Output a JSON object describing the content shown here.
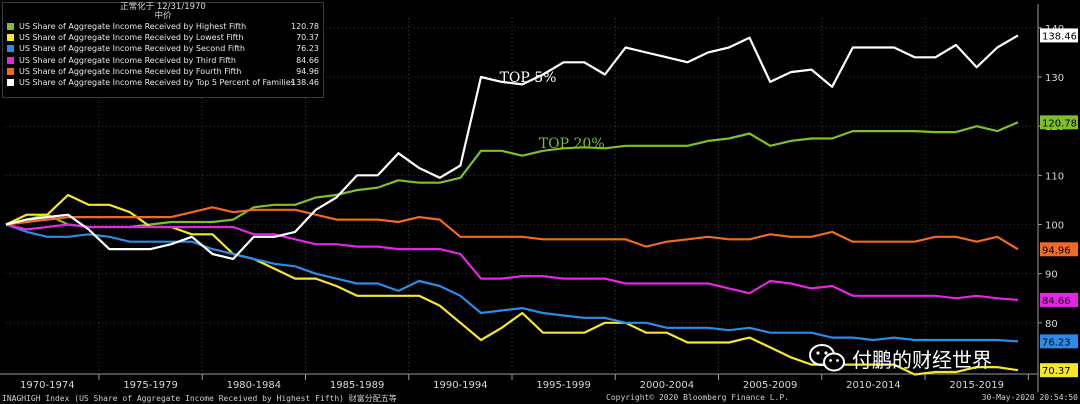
{
  "legend": {
    "title_line1": "正常化于 12/31/1970",
    "title_line2": "中价"
  },
  "chart_data": {
    "type": "line",
    "title": "正常化于 12/31/1970",
    "ylim": [
      70,
      142
    ],
    "yticks": [
      80,
      90,
      100,
      110,
      120,
      130,
      140
    ],
    "x_periods": [
      "1970-1974",
      "1975-1979",
      "1980-1984",
      "1985-1989",
      "1990-1994",
      "1995-1999",
      "2000-2004",
      "2005-2009",
      "2010-2014",
      "2015-2019"
    ],
    "x": [
      1970,
      1971,
      1972,
      1973,
      1974,
      1975,
      1976,
      1977,
      1978,
      1979,
      1980,
      1981,
      1982,
      1983,
      1984,
      1985,
      1986,
      1987,
      1988,
      1989,
      1990,
      1991,
      1992,
      1993,
      1994,
      1995,
      1996,
      1997,
      1998,
      1999,
      2000,
      2001,
      2002,
      2003,
      2004,
      2005,
      2006,
      2007,
      2008,
      2009,
      2010,
      2011,
      2012,
      2013,
      2014,
      2015,
      2016,
      2017,
      2018,
      2019
    ],
    "series": [
      {
        "name": "US Share of Aggregate Income Received by Highest Fifth",
        "color": "#7fbf2a",
        "last": "120.78",
        "values": [
          100,
          101,
          102,
          100,
          99.5,
          99.5,
          99.5,
          100,
          100.5,
          100.5,
          100.5,
          101,
          103.5,
          104,
          104,
          105.5,
          106,
          107,
          107.5,
          109,
          108.5,
          108.5,
          109.5,
          115,
          115,
          114,
          115,
          115.5,
          115.7,
          115.5,
          116,
          116,
          116,
          116,
          117,
          117.5,
          118.5,
          116,
          117,
          117.5,
          117.5,
          119,
          119,
          119,
          119,
          118.8,
          118.8,
          120,
          119,
          120.78
        ]
      },
      {
        "name": "US Share of Aggregate Income Received by Lowest Fifth",
        "color": "#f5e62e",
        "last": "70.37",
        "values": [
          100,
          102,
          102,
          106,
          104,
          104,
          102.5,
          99.5,
          99.5,
          98,
          98,
          94,
          93,
          91,
          89,
          89,
          87.5,
          85.5,
          85.5,
          85.5,
          85.5,
          83.5,
          80,
          76.5,
          79,
          82,
          78,
          78,
          78,
          80,
          80,
          78,
          78,
          76,
          76,
          76,
          77,
          75,
          73,
          71.5,
          71.5,
          71.5,
          71.5,
          71.5,
          69.5,
          70,
          70,
          71,
          71,
          70.37
        ]
      },
      {
        "name": "US Share of Aggregate Income Received by Second Fifth",
        "color": "#2b8be6",
        "last": "76.23",
        "values": [
          100,
          98.5,
          97.5,
          97.5,
          98,
          97.5,
          96.5,
          96.5,
          96.5,
          96.5,
          95,
          94,
          93,
          92,
          91.5,
          90,
          89,
          88,
          88,
          86.5,
          88.5,
          87.5,
          85.5,
          82,
          82.5,
          83,
          82,
          81.5,
          81,
          81,
          80,
          80,
          79,
          79,
          79,
          78.5,
          79,
          78,
          78,
          78,
          77,
          77,
          76.5,
          77,
          76.5,
          76.5,
          76.5,
          76.5,
          76.5,
          76.23
        ]
      },
      {
        "name": "US Share of Aggregate Income Received by Third Fifth",
        "color": "#e425e4",
        "last": "84.66",
        "values": [
          100,
          99,
          99.5,
          100,
          99.5,
          99.5,
          99.5,
          99.5,
          99.5,
          99.5,
          99.5,
          99.5,
          98,
          98,
          97,
          96,
          96,
          95.5,
          95.5,
          95,
          95,
          95,
          94,
          89,
          89,
          89.5,
          89.5,
          89,
          89,
          89,
          88,
          88,
          88,
          88,
          88,
          87,
          86,
          88.5,
          88,
          87,
          87.5,
          85.5,
          85.5,
          85.5,
          85.5,
          85.5,
          85,
          85.5,
          85,
          84.66
        ]
      },
      {
        "name": "US Share of Aggregate Income Received by Fourth Fifth",
        "color": "#f06a22",
        "last": "94.96",
        "values": [
          100,
          100.5,
          101,
          101.5,
          101.5,
          101.5,
          101.5,
          101.5,
          101.5,
          102.5,
          103.5,
          102.5,
          103,
          103,
          103,
          102,
          101,
          101,
          101,
          100.5,
          101.5,
          101,
          97.5,
          97.5,
          97.5,
          97.5,
          97,
          97,
          97,
          97,
          97,
          95.5,
          96.5,
          97,
          97.5,
          97,
          97,
          98,
          97.5,
          97.5,
          98.5,
          96.5,
          96.5,
          96.5,
          96.5,
          97.5,
          97.5,
          96.5,
          97.5,
          94.96
        ]
      },
      {
        "name": "US Share of Aggregate Income Received by Top 5 Percent of Families",
        "color": "#ffffff",
        "last": "138.46",
        "values": [
          100,
          101,
          101.5,
          102,
          99,
          95,
          95,
          95,
          96,
          97.5,
          94,
          93,
          97.5,
          97.5,
          98.5,
          103,
          105.5,
          110,
          110,
          114.5,
          111.5,
          109.5,
          112,
          130,
          129,
          128.5,
          130.5,
          133,
          133,
          130.5,
          136,
          135,
          134,
          133,
          135,
          136,
          138,
          129,
          131,
          131.5,
          128,
          136,
          136,
          136,
          134,
          134,
          136.5,
          132,
          136,
          138.46
        ]
      }
    ],
    "annotations": [
      {
        "text": "TOP  5%",
        "series": 5
      },
      {
        "text": "TOP  20%",
        "series": 0
      }
    ]
  },
  "footer": {
    "left": "INAGHIGH Index (US Share of Aggregate Income Received by Highest Fifth) 财富分配五等",
    "center": "Copyright© 2020 Bloomberg Finance L.P.",
    "right": "30-May-2020 20:54:50"
  },
  "watermark": {
    "text": "付鹏的财经世界",
    "icon": "wechat-icon"
  }
}
